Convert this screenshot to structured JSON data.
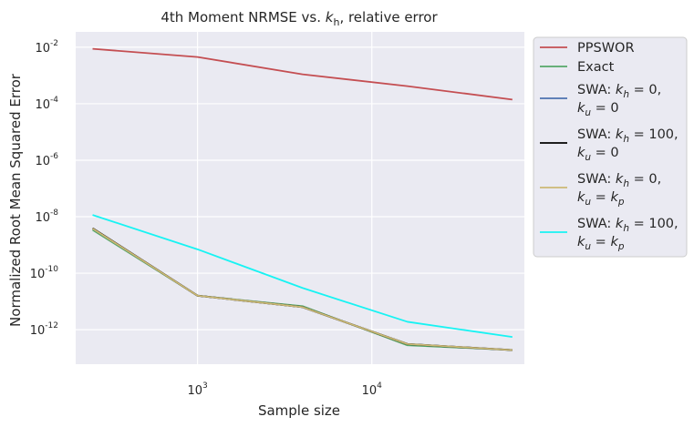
{
  "chart_data": {
    "type": "line",
    "title": "4th Moment NRMSE vs. k_h, relative error",
    "title_parts": {
      "prefix": "4th Moment NRMSE vs. ",
      "var": "k",
      "sub": "h",
      "suffix": ", relative error"
    },
    "xlabel": "Sample size",
    "ylabel": "Normalized Root Mean Squared Error",
    "xscale": "log",
    "yscale": "log",
    "xlim": [
      200,
      75000
    ],
    "ylim": [
      6e-14,
      0.035
    ],
    "xticks": [
      {
        "value": 1000,
        "base": "10",
        "exp": "3"
      },
      {
        "value": 10000,
        "base": "10",
        "exp": "4"
      }
    ],
    "yticks": [
      {
        "value": 0.01,
        "base": "10",
        "exp": "-2"
      },
      {
        "value": 0.0001,
        "base": "10",
        "exp": "-4"
      },
      {
        "value": 1e-06,
        "base": "10",
        "exp": "-6"
      },
      {
        "value": 1e-08,
        "base": "10",
        "exp": "-8"
      },
      {
        "value": 1e-10,
        "base": "10",
        "exp": "-10"
      },
      {
        "value": 1e-12,
        "base": "10",
        "exp": "-12"
      }
    ],
    "grid": true,
    "legend_position": "outside-upper-right",
    "x": [
      250,
      1000,
      4000,
      16000,
      64000
    ],
    "series": [
      {
        "name": "PPSWOR",
        "label_lines": [
          "PPSWOR"
        ],
        "color": "#c44e52",
        "values": [
          0.0088,
          0.0045,
          0.0011,
          0.00042,
          0.00014
        ]
      },
      {
        "name": "Exact",
        "label_lines": [
          "Exact"
        ],
        "color": "#55a868",
        "values": [
          3.4e-09,
          1.6e-11,
          6.8e-12,
          2.8e-13,
          1.9e-13
        ]
      },
      {
        "name": "SWA: k_h = 0, k_u = 0",
        "label_lines": [
          "SWA: k_h = 0,",
          "k_u = 0"
        ],
        "color": "#4c72b0",
        "values": [
          3.8e-09,
          1.6e-11,
          6.3e-12,
          3.1e-13,
          1.9e-13
        ]
      },
      {
        "name": "SWA: k_h = 100, k_u = 0",
        "label_lines": [
          "SWA: k_h = 100,",
          "k_u = 0"
        ],
        "color": "#000000",
        "values": [
          3.9e-09,
          1.6e-11,
          6.3e-12,
          3.1e-13,
          1.9e-13
        ]
      },
      {
        "name": "SWA: k_h = 0, k_u = k_p",
        "label_lines": [
          "SWA: k_h = 0,",
          "k_u = k_p"
        ],
        "color": "#ccb974",
        "values": [
          3.8e-09,
          1.6e-11,
          6.3e-12,
          3.1e-13,
          1.9e-13
        ]
      },
      {
        "name": "SWA: k_h = 100, k_u = k_p",
        "label_lines": [
          "SWA: k_h = 100,",
          "k_u = k_p"
        ],
        "color": "#17f3f3",
        "values": [
          1.15e-08,
          7e-10,
          3e-11,
          1.9e-12,
          5.5e-13
        ]
      }
    ]
  },
  "colors": {
    "plot_background": "#eaeaf2",
    "grid": "#ffffff",
    "text": "#262626",
    "legend_border": "#cccccc"
  }
}
